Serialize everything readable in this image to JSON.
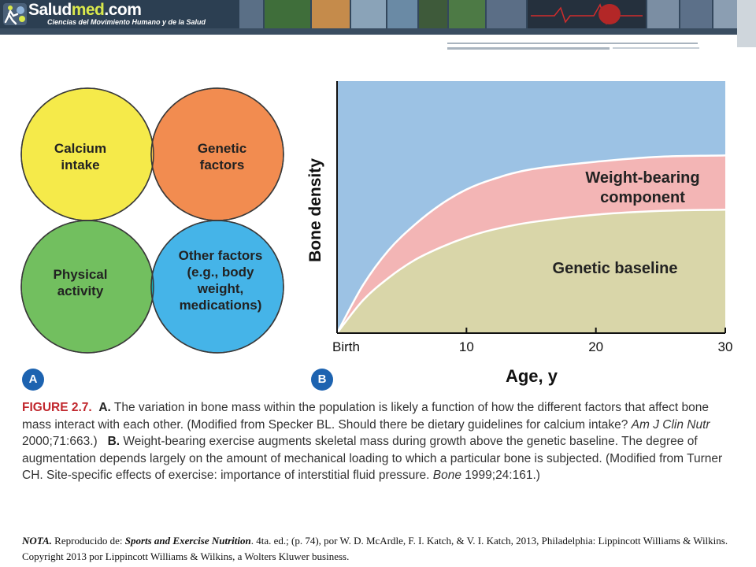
{
  "header": {
    "brand_name_prefix": "Salud",
    "brand_name_accent": "med",
    "brand_name_suffix": ".com",
    "brand_tagline": "Ciencias del Movimiento Humano y de la Salud",
    "logo_icon": "runner-logo-icon",
    "colors": {
      "banner": "#2c3f52",
      "accent": "#d9e84c"
    }
  },
  "figure_a": {
    "badge": "A",
    "circles": [
      {
        "label": "Calcium intake",
        "lines": [
          "Calcium",
          "intake"
        ],
        "color": "#f5ea4a"
      },
      {
        "label": "Genetic factors",
        "lines": [
          "Genetic",
          "factors"
        ],
        "color": "#f28c50"
      },
      {
        "label": "Physical activity",
        "lines": [
          "Physical",
          "activity"
        ],
        "color": "#72bf5f"
      },
      {
        "label": "Other factors (e.g., body weight, medications)",
        "lines": [
          "Other factors",
          "(e.g., body",
          "weight,",
          "medications)"
        ],
        "color": "#45b4e8"
      }
    ]
  },
  "figure_b": {
    "badge": "B"
  },
  "chart_data": {
    "type": "area",
    "x": [
      0,
      2,
      4,
      6,
      8,
      10,
      12,
      15,
      20,
      25,
      30
    ],
    "x_ticks": [
      "Birth",
      "10",
      "20",
      "30"
    ],
    "x_tick_values": [
      0,
      10,
      20,
      30
    ],
    "xlabel": "Age, y",
    "ylabel": "Bone density",
    "xlim": [
      0,
      30
    ],
    "ylim": [
      0,
      100
    ],
    "series": [
      {
        "name": "Genetic baseline",
        "values": [
          0,
          13,
          22,
          29,
          34,
          38,
          41,
          44,
          47,
          48.5,
          49
        ],
        "color": "#d9d6a9"
      },
      {
        "name": "Weight-bearing component",
        "values": [
          0,
          19,
          33,
          43,
          51,
          57,
          61,
          65,
          68,
          70,
          70.5
        ],
        "color": "#f3b5b5"
      }
    ],
    "background_color": "#9cc2e4",
    "labels": {
      "weight_bearing_lines": [
        "Weight-bearing",
        "component"
      ],
      "genetic_baseline": "Genetic baseline"
    }
  },
  "caption": {
    "figure_number": "FIGURE 2.7.",
    "part_a_letter": "A.",
    "part_a_text": " The variation in bone mass within the population is likely a function of how the different factors that affect bone mass interact with each other. (Modified from Specker BL. Should there be dietary guidelines for calcium intake? ",
    "part_a_journal": "Am J Clin Nutr",
    "part_a_ref": " 2000;71:663.)",
    "part_b_letter": "B.",
    "part_b_text": " Weight-bearing exercise augments skeletal mass during growth above the genetic baseline. The degree of augmentation depends largely on the amount of mechanical loading to which a particular bone is subjected. (Modified from Turner CH. Site-specific effects of exercise: importance of interstitial fluid pressure. ",
    "part_b_journal": "Bone",
    "part_b_ref": " 1999;24:161.)"
  },
  "note": {
    "label": "NOTA.",
    "intro": " Reproducido de: ",
    "book_title": "Sports and Exercise Nutrition",
    "rest": ". 4ta. ed.; (p. 74), por W. D. McArdle, F. I. Katch, & V. I. Katch, 2013, Philadelphia: Lippincott Williams  & Wilkins. Copyright 2013 por Lippincott Williams  & Wilkins, a Wolters Kluwer business."
  }
}
